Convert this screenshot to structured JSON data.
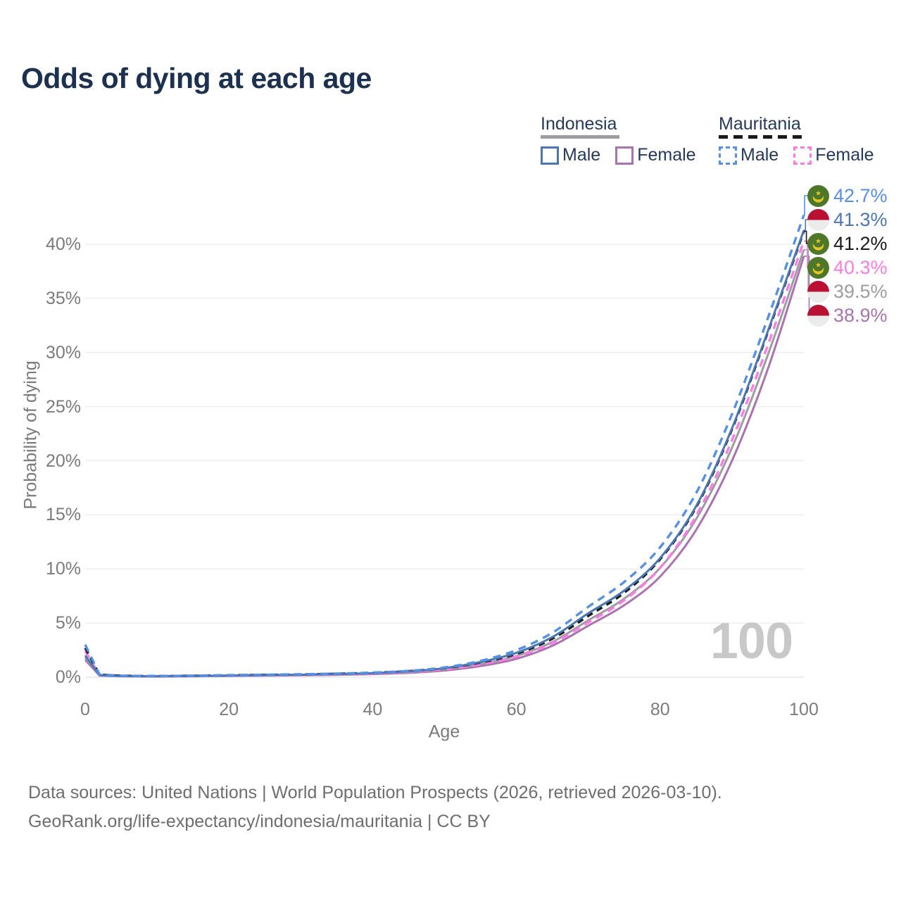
{
  "title": "Odds of dying at each age",
  "legend": {
    "indonesia": {
      "title": "Indonesia",
      "male": "Male",
      "female": "Female"
    },
    "mauritania": {
      "title": "Mauritania",
      "male": "Male",
      "female": "Female"
    }
  },
  "colors": {
    "title_text": "#1c3150",
    "axis_text": "#7b7b7b",
    "footer_text": "#6e6e6e",
    "watermark": "#c8c8c8",
    "gridline": "#ececec",
    "flag_red": "#ba1033",
    "flag_white": "#ebebeb",
    "flag_green": "#4d7829",
    "flag_gold": "#e5c427"
  },
  "chart_data": {
    "type": "line",
    "title": "Odds of dying at each age",
    "xlabel": "Age",
    "ylabel": "Probability of dying",
    "x_ticks": [
      0,
      20,
      40,
      60,
      80,
      100
    ],
    "y_ticks_percent": [
      0,
      5,
      10,
      15,
      20,
      25,
      30,
      35,
      40
    ],
    "xlim": [
      0,
      100
    ],
    "ylim_percent": [
      0,
      43
    ],
    "grid": true,
    "legend_position": "top-right",
    "annotation": "100",
    "ages": [
      0,
      2,
      5,
      10,
      15,
      20,
      25,
      30,
      35,
      40,
      45,
      50,
      55,
      60,
      65,
      70,
      75,
      80,
      85,
      90,
      95,
      100
    ],
    "series": [
      {
        "id": "mauritania-male",
        "name": "Mauritania Male",
        "country": "Mauritania",
        "sex": "Male",
        "style": "dashed",
        "color": "#5590e8",
        "end_label": "42.7%",
        "end_value_percent": 42.7,
        "values": [
          3.0,
          0.25,
          0.14,
          0.11,
          0.14,
          0.19,
          0.23,
          0.27,
          0.33,
          0.42,
          0.58,
          0.9,
          1.5,
          2.5,
          4.1,
          6.5,
          8.8,
          12.0,
          17.0,
          24.3,
          33.2,
          42.7
        ]
      },
      {
        "id": "indonesia-male",
        "name": "Indonesia Male",
        "country": "Indonesia",
        "sex": "Male",
        "style": "solid",
        "color": "#4a77b4",
        "end_label": "41.3%",
        "end_value_percent": 41.3,
        "values": [
          2.0,
          0.18,
          0.1,
          0.08,
          0.11,
          0.15,
          0.19,
          0.23,
          0.29,
          0.38,
          0.53,
          0.83,
          1.4,
          2.25,
          3.7,
          5.9,
          8.0,
          11.0,
          15.8,
          23.0,
          32.0,
          41.3
        ]
      },
      {
        "id": "mauritania-all",
        "name": "Mauritania Both sexes",
        "country": "Mauritania",
        "sex": "Both",
        "style": "dashed",
        "color": "#1a1a1a",
        "end_label": "41.2%",
        "end_value_percent": 41.2,
        "values": [
          2.7,
          0.22,
          0.13,
          0.1,
          0.13,
          0.17,
          0.21,
          0.25,
          0.31,
          0.4,
          0.55,
          0.83,
          1.35,
          2.15,
          3.55,
          5.65,
          7.8,
          10.9,
          15.7,
          22.9,
          31.9,
          41.2
        ]
      },
      {
        "id": "mauritania-female",
        "name": "Mauritania Female",
        "country": "Mauritania",
        "sex": "Female",
        "style": "dashed",
        "color": "#fb7ce4",
        "end_label": "40.3%",
        "end_value_percent": 40.3,
        "values": [
          2.4,
          0.2,
          0.12,
          0.09,
          0.11,
          0.14,
          0.17,
          0.21,
          0.26,
          0.34,
          0.47,
          0.72,
          1.18,
          1.9,
          3.15,
          5.05,
          7.1,
          10.1,
          14.9,
          21.9,
          30.7,
          40.3
        ]
      },
      {
        "id": "indonesia-all",
        "name": "Indonesia Both sexes",
        "country": "Indonesia",
        "sex": "Both",
        "style": "solid",
        "color": "#9d9da1",
        "end_label": "39.5%",
        "end_value_percent": 39.5,
        "values": [
          1.8,
          0.16,
          0.09,
          0.07,
          0.1,
          0.13,
          0.16,
          0.2,
          0.25,
          0.33,
          0.46,
          0.72,
          1.2,
          1.95,
          3.25,
          5.25,
          7.25,
          10.1,
          14.6,
          21.2,
          29.8,
          39.5
        ]
      },
      {
        "id": "indonesia-female",
        "name": "Indonesia Female",
        "country": "Indonesia",
        "sex": "Female",
        "style": "solid",
        "color": "#aa72b0",
        "end_label": "38.9%",
        "end_value_percent": 38.9,
        "values": [
          1.6,
          0.14,
          0.08,
          0.06,
          0.08,
          0.11,
          0.14,
          0.17,
          0.21,
          0.28,
          0.4,
          0.62,
          1.02,
          1.7,
          2.9,
          4.75,
          6.65,
          9.3,
          13.6,
          20.0,
          28.5,
          38.9
        ]
      }
    ]
  },
  "footer": {
    "line1": "Data sources: United Nations | World Population Prospects (2026, retrieved 2026-03-10).",
    "line2": "GeoRank.org/life-expectancy/indonesia/mauritania | CC BY"
  }
}
